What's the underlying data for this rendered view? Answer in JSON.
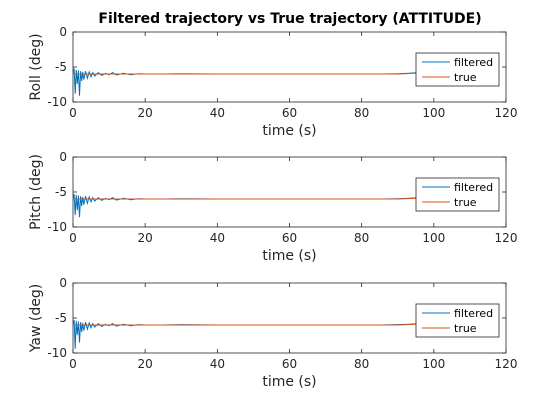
{
  "chart_data": {
    "type": "line",
    "title": "Filtered trajectory vs True trajectory (ATTITUDE)",
    "xlim": [
      0,
      120
    ],
    "xticks": [
      "0",
      "20",
      "40",
      "60",
      "80",
      "100",
      "120"
    ],
    "yticks": [
      "0",
      "-5",
      "-10"
    ],
    "ytick_values": [
      0,
      -5,
      -10
    ],
    "grid": false,
    "legend_position": "right",
    "subplots": [
      {
        "id": "roll",
        "ylabel": "Roll (deg)",
        "xlabel": "time (s)",
        "ylim": [
          -10,
          0
        ],
        "series": [
          {
            "name": "filtered",
            "color": "#0072BD",
            "x": [
              0,
              0.3,
              0.6,
              0.9,
              1.2,
              1.5,
              1.8,
              2.1,
              2.4,
              2.7,
              3,
              3.5,
              4,
              4.5,
              5,
              5.5,
              6,
              7,
              8,
              9,
              10,
              11,
              12,
              14,
              16,
              18,
              20,
              25,
              30,
              40,
              50,
              60,
              70,
              80,
              85,
              90,
              93,
              96,
              98,
              100
            ],
            "values": [
              -6,
              -5.2,
              -8.8,
              -5.4,
              -7.4,
              -5.5,
              -9.1,
              -5.6,
              -7,
              -5.7,
              -6.8,
              -5.6,
              -6.6,
              -5.7,
              -6.4,
              -5.8,
              -6.3,
              -5.8,
              -6.2,
              -5.9,
              -6.1,
              -5.8,
              -6.15,
              -5.9,
              -6.1,
              -5.95,
              -6,
              -6,
              -5.95,
              -6,
              -6,
              -6,
              -6,
              -6,
              -6,
              -5.95,
              -5.9,
              -5.8,
              -5.75,
              -5.7
            ]
          },
          {
            "name": "true",
            "color": "#D95319",
            "x": [
              0,
              10,
              20,
              40,
              60,
              80,
              90,
              95,
              100
            ],
            "values": [
              -6,
              -6,
              -6,
              -6,
              -6,
              -6,
              -6,
              -5.9,
              -5.8
            ]
          }
        ]
      },
      {
        "id": "pitch",
        "ylabel": "Pitch (deg)",
        "xlabel": "time (s)",
        "ylim": [
          -10,
          0
        ],
        "series": [
          {
            "name": "filtered",
            "color": "#0072BD",
            "x": [
              0,
              0.3,
              0.6,
              0.9,
              1.2,
              1.5,
              1.8,
              2.1,
              2.4,
              2.7,
              3,
              3.5,
              4,
              4.5,
              5,
              5.5,
              6,
              7,
              8,
              9,
              10,
              11,
              12,
              14,
              16,
              18,
              20,
              25,
              30,
              40,
              50,
              60,
              70,
              80,
              85,
              90,
              93,
              96,
              98,
              100
            ],
            "values": [
              -6,
              -5.3,
              -8.3,
              -5.4,
              -7.6,
              -5.5,
              -8.6,
              -5.6,
              -7,
              -5.7,
              -6.8,
              -5.6,
              -6.6,
              -5.7,
              -6.4,
              -5.8,
              -6.3,
              -5.8,
              -6.2,
              -5.9,
              -6.1,
              -5.8,
              -6.15,
              -5.9,
              -6.1,
              -5.95,
              -6,
              -6,
              -5.95,
              -6,
              -6,
              -6,
              -6,
              -6,
              -6,
              -5.95,
              -5.9,
              -5.8,
              -5.75,
              -5.7
            ]
          },
          {
            "name": "true",
            "color": "#D95319",
            "x": [
              0,
              10,
              20,
              40,
              60,
              80,
              90,
              95,
              100
            ],
            "values": [
              -6,
              -6,
              -6,
              -6,
              -6,
              -6,
              -6,
              -5.9,
              -5.8
            ]
          }
        ]
      },
      {
        "id": "yaw",
        "ylabel": "Yaw (deg)",
        "xlabel": "time (s)",
        "ylim": [
          -10,
          0
        ],
        "series": [
          {
            "name": "filtered",
            "color": "#0072BD",
            "x": [
              0,
              0.3,
              0.6,
              0.9,
              1.2,
              1.5,
              1.8,
              2.1,
              2.4,
              2.7,
              3,
              3.5,
              4,
              4.5,
              5,
              5.5,
              6,
              7,
              8,
              9,
              10,
              11,
              12,
              14,
              16,
              18,
              20,
              25,
              30,
              40,
              50,
              60,
              70,
              80,
              85,
              90,
              93,
              96,
              98,
              100
            ],
            "values": [
              -6,
              -5.3,
              -9.4,
              -5.4,
              -7.4,
              -5.5,
              -8.5,
              -5.6,
              -7,
              -5.7,
              -6.8,
              -5.6,
              -6.6,
              -5.7,
              -6.4,
              -5.8,
              -6.3,
              -5.8,
              -6.2,
              -5.9,
              -6.1,
              -5.8,
              -6.15,
              -5.9,
              -6.1,
              -5.95,
              -6,
              -6,
              -5.95,
              -6,
              -6,
              -6,
              -6,
              -6,
              -6,
              -5.95,
              -5.9,
              -5.8,
              -5.75,
              -5.7
            ]
          },
          {
            "name": "true",
            "color": "#D95319",
            "x": [
              0,
              10,
              20,
              40,
              60,
              80,
              90,
              95,
              100
            ],
            "values": [
              -6,
              -6,
              -6,
              -6,
              -6,
              -6,
              -6,
              -5.9,
              -5.8
            ]
          }
        ]
      }
    ]
  }
}
